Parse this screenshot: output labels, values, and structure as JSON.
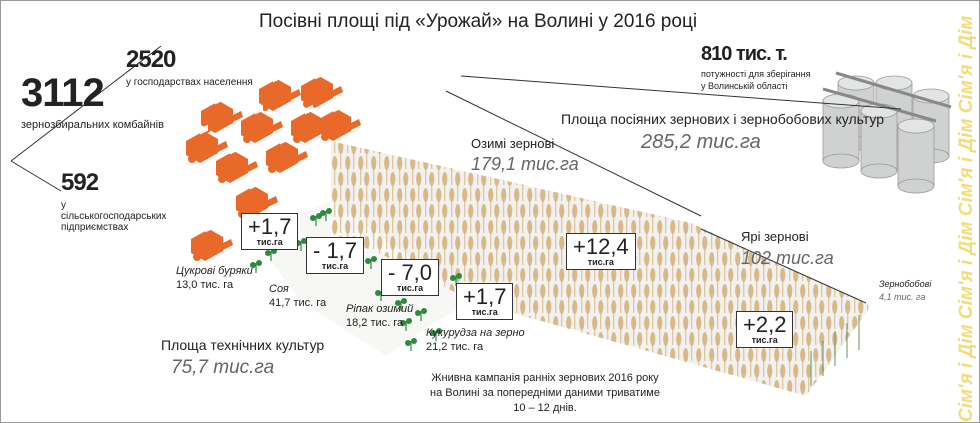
{
  "title": "Посівні площі під «Урожай» на Волині у 2016 році",
  "combines": {
    "total_value": "3112",
    "total_label": "зернозбиральних комбайнів",
    "households_value": "2520",
    "households_label": "у господарствах населення",
    "enterprises_value": "592",
    "enterprises_label": "у сільськогосподарських підприємствах",
    "icon": "combine-harvester-icon",
    "color": "#e8692a"
  },
  "storage": {
    "value": "810 тис. т.",
    "label_line1": "потужності для зберігання",
    "label_line2": "у Волинській області",
    "icon": "grain-silo-icon"
  },
  "grain_total": {
    "label": "Площа посіяних зернових і зернобобових культур",
    "value": "285,2 тис.га"
  },
  "winter_grain": {
    "label": "Озимі зернові",
    "value": "179,1 тис.га",
    "change": "+12,4",
    "unit": "тис.га"
  },
  "spring_grain": {
    "label": "Ярі зернові",
    "value": "102 тис.га",
    "change": "+2,2",
    "unit": "тис.га"
  },
  "legumes": {
    "label": "Зернобобові",
    "value": "4,1 тис. га"
  },
  "technical_total": {
    "label": "Площа технічних культур",
    "value": "75,7 тис.га"
  },
  "technical_crops": [
    {
      "label": "Цукрові буряки",
      "value": "13,0 тис. га",
      "change": "+1,7",
      "unit": "тис.га"
    },
    {
      "label": "Соя",
      "value": "41,7 тис. га",
      "change": "- 1,7",
      "unit": "тис.га"
    },
    {
      "label": "Ріпак озимий",
      "value": "18,2 тис. га",
      "change": "- 7,0",
      "unit": "тис.га"
    },
    {
      "label": "Кукурудза на зерно",
      "value": "21,2 тис. га",
      "change": "+1,7",
      "unit": "тис.га"
    }
  ],
  "note": "Жнивна кампанія ранніх зернових 2016 року на Волині за попередніми даними триватиме 10 – 12 днів.",
  "watermark": "Сім'я і Дім",
  "colors": {
    "wheat": "#d9b98a",
    "field": "#f1f1ef",
    "green": "#2e8b3e",
    "watermark": "#f3dc7a",
    "silo": "#cfd2d1"
  }
}
